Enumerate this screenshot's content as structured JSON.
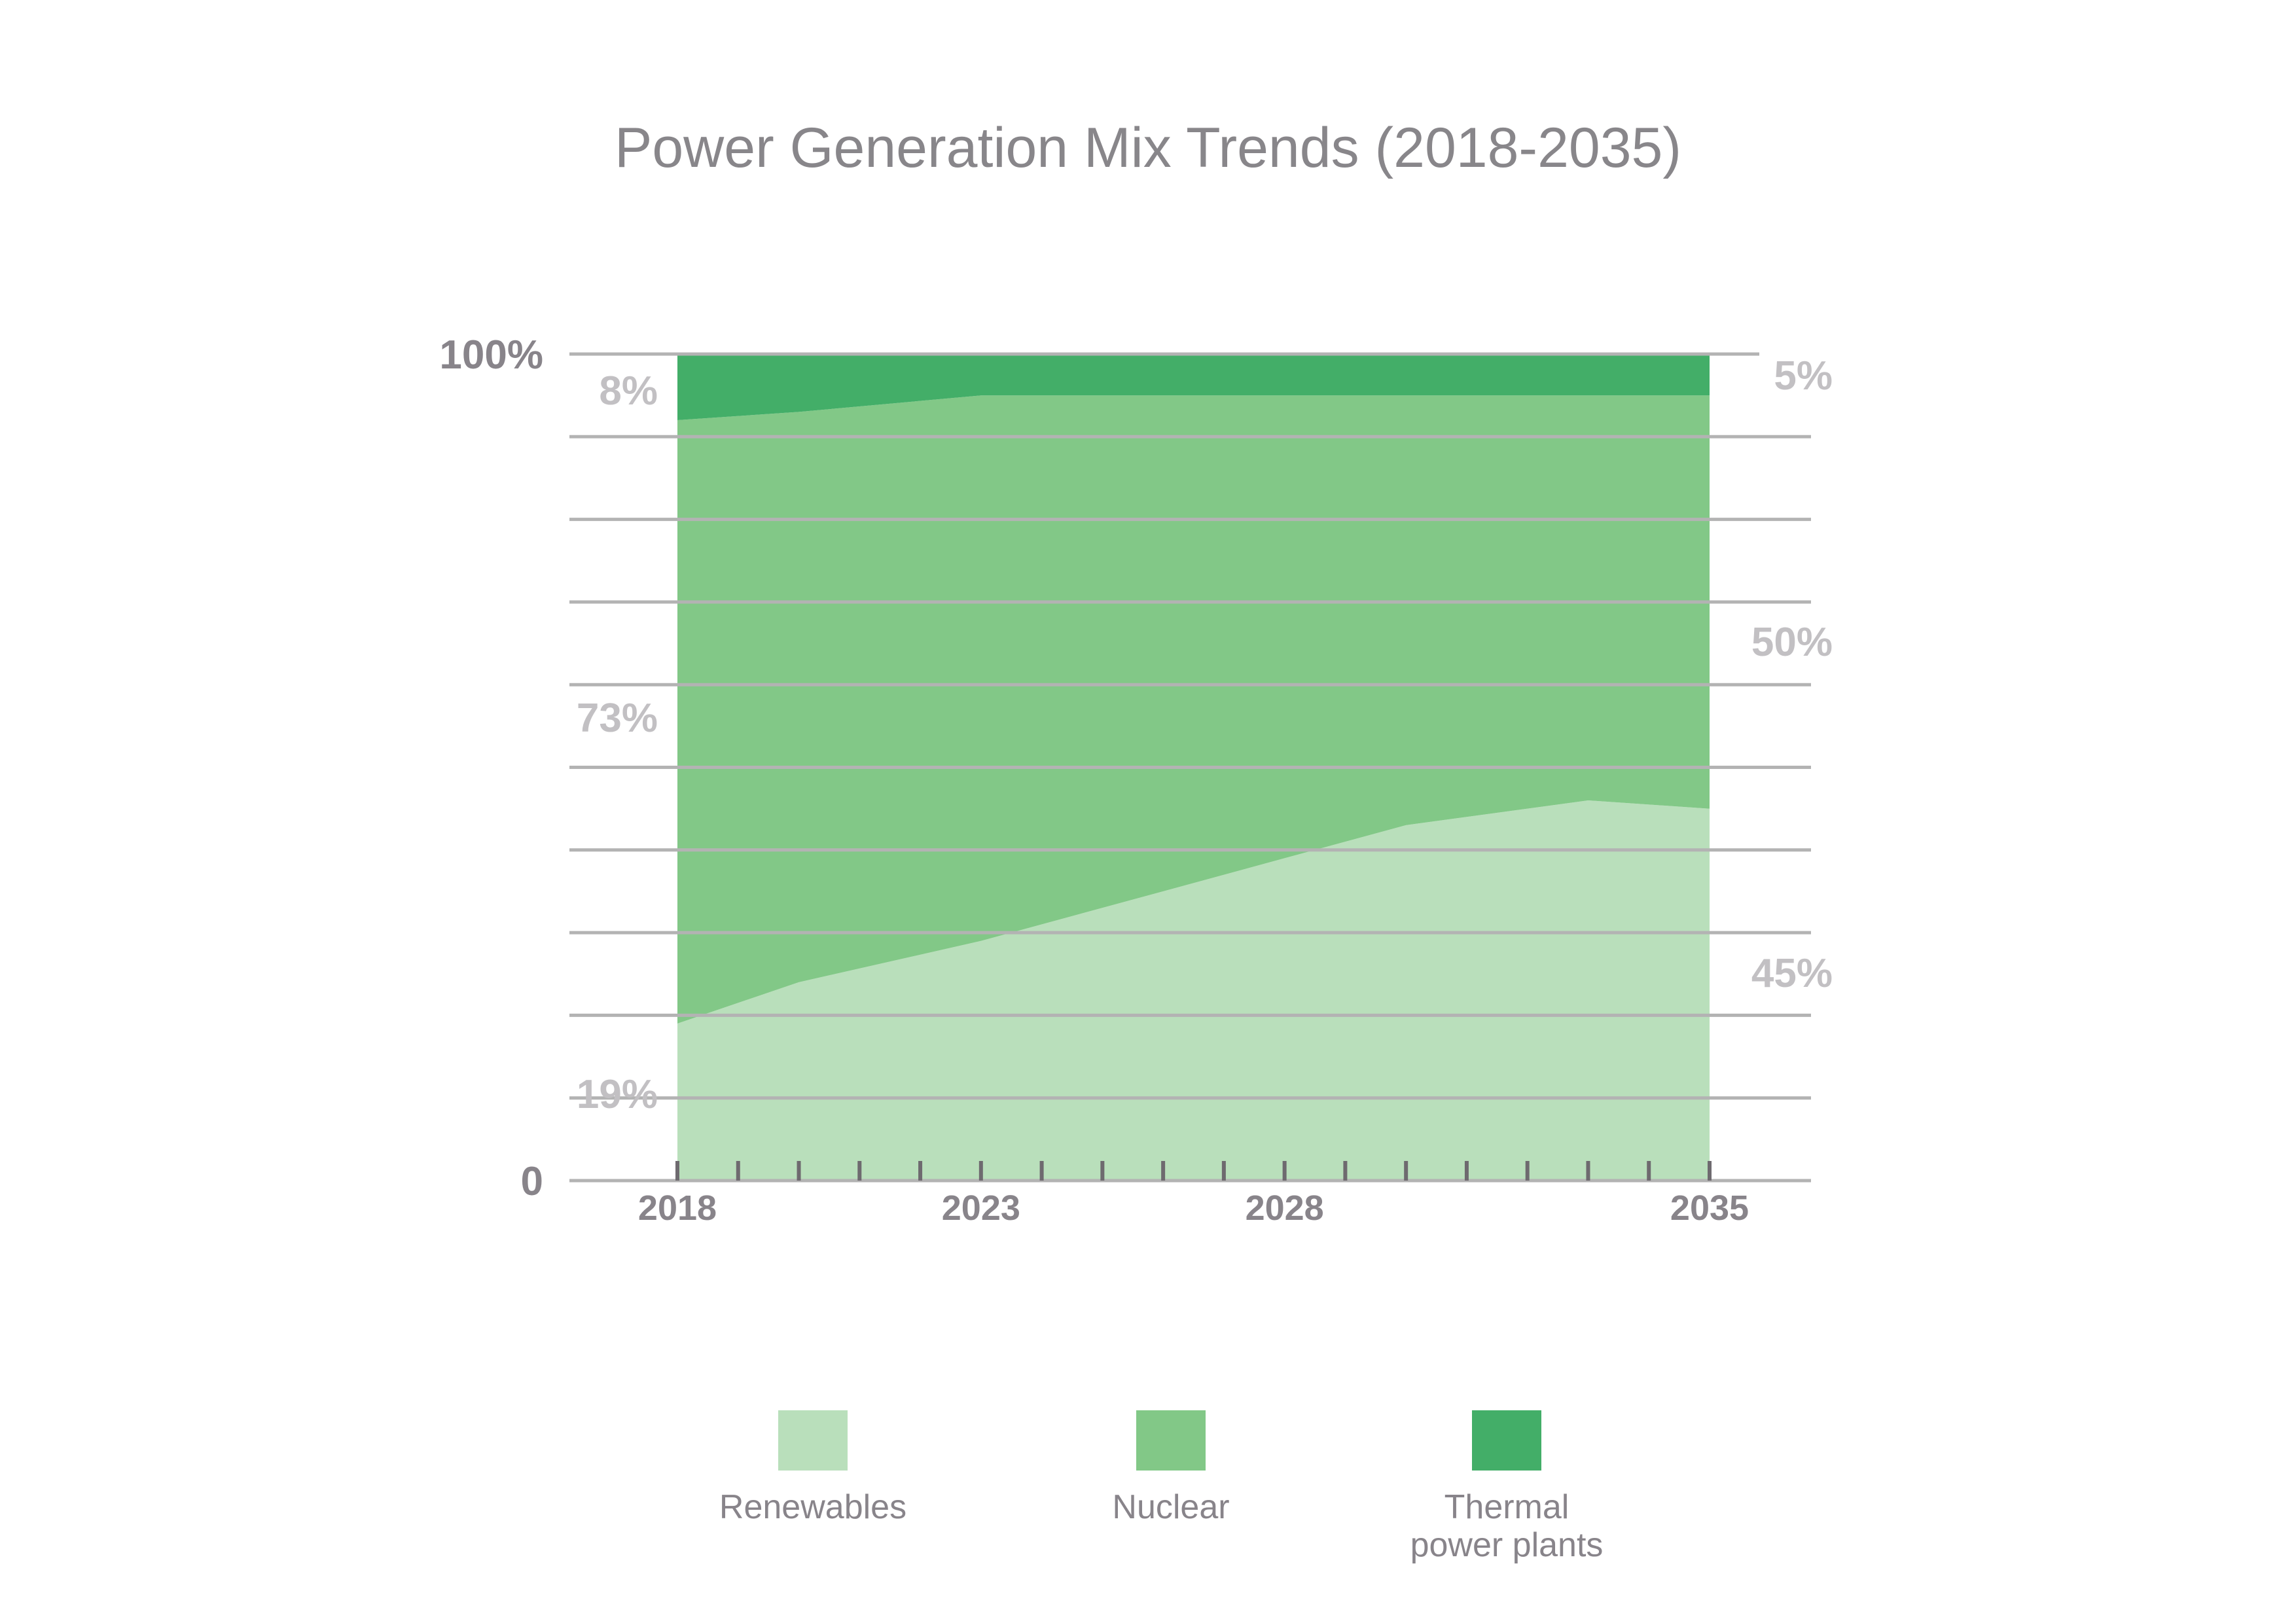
{
  "chart_data": {
    "type": "area",
    "stacked": true,
    "percent": true,
    "title": "Power Generation Mix Trends (2018-2035)",
    "xlabel": "",
    "ylabel": "",
    "x": [
      2018,
      2020,
      2023,
      2026,
      2028,
      2030,
      2033,
      2035
    ],
    "x_ticks": [
      2018,
      2019,
      2020,
      2021,
      2022,
      2023,
      2024,
      2025,
      2026,
      2027,
      2028,
      2029,
      2030,
      2031,
      2032,
      2033,
      2034,
      2035
    ],
    "x_tick_labels": [
      "2018",
      "2023",
      "2028",
      "2035"
    ],
    "y_tick_labels": [
      "0",
      "100%"
    ],
    "ylim": [
      0,
      100
    ],
    "gridlines": [
      10,
      20,
      30,
      40,
      50,
      60,
      70,
      80,
      90,
      100
    ],
    "grid": true,
    "legend_position": "bottom",
    "series": [
      {
        "name": "Renewables",
        "color": "#b9dfbb",
        "values": [
          19,
          24,
          29,
          35,
          39,
          43,
          46,
          45
        ]
      },
      {
        "name": "Nuclear",
        "color": "#82c887",
        "values": [
          73,
          69,
          66,
          60,
          56,
          52,
          49,
          50
        ]
      },
      {
        "name": "Thermal power plants",
        "color": "#43ae68",
        "values": [
          8,
          7,
          5,
          5,
          5,
          5,
          5,
          5
        ]
      }
    ],
    "annotations": {
      "start": {
        "renewables": "19%",
        "nuclear": "73%",
        "thermal": "8%"
      },
      "end": {
        "renewables": "45%",
        "nuclear": "50%",
        "thermal": "5%"
      }
    }
  },
  "legend": {
    "items": [
      {
        "label_lines": [
          "Renewables"
        ],
        "color": "#b9dfbb"
      },
      {
        "label_lines": [
          "Nuclear"
        ],
        "color": "#82c887"
      },
      {
        "label_lines": [
          "Thermal",
          "power plants"
        ],
        "color": "#43ae68"
      }
    ]
  },
  "colors": {
    "grid": "#b3b3b3",
    "axis_text": "#88848a",
    "pct_text": "#c2c0c3",
    "title": "#88868a"
  }
}
